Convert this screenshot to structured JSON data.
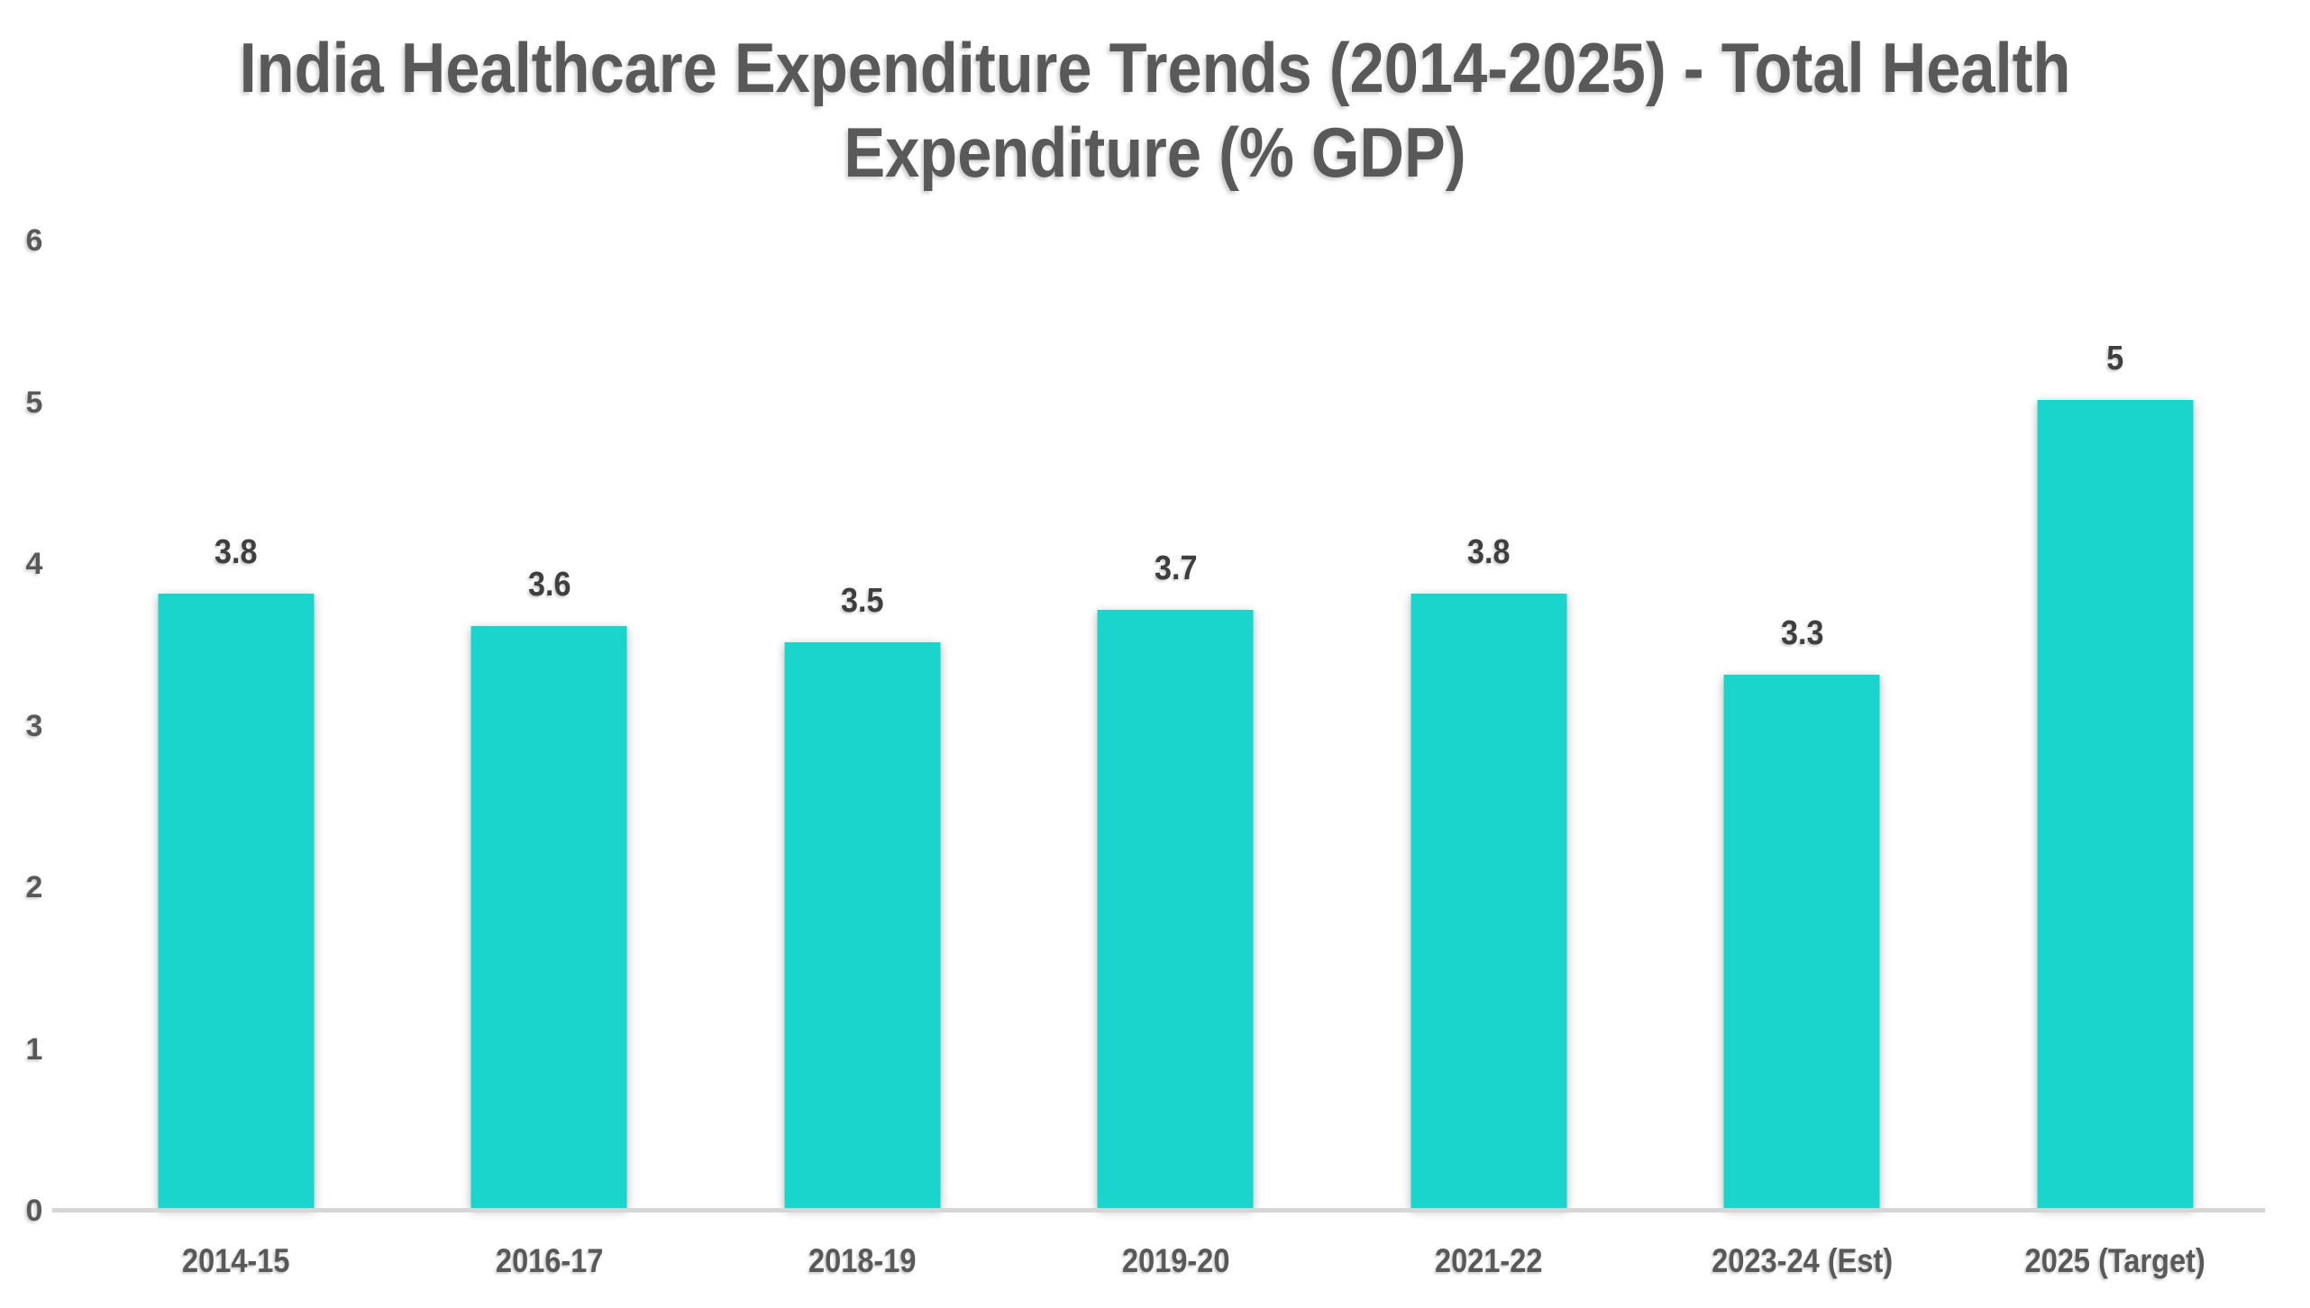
{
  "header": {
    "title_line1": "India Healthcare Expenditure Trends (2014-2025) - Total Health",
    "title_line2": "Expenditure (% GDP)"
  },
  "chart_data": {
    "type": "bar",
    "title": "India Healthcare Expenditure Trends (2014-2025) - Total Health Expenditure (% GDP)",
    "xlabel": "",
    "ylabel": "",
    "categories": [
      "2014-15",
      "2016-17",
      "2018-19",
      "2019-20",
      "2021-22",
      "2023-24 (Est)",
      "2025 (Target)"
    ],
    "values": [
      3.8,
      3.6,
      3.5,
      3.7,
      3.8,
      3.3,
      5
    ],
    "bar_labels": [
      "3.8",
      "3.6",
      "3.5",
      "3.7",
      "3.8",
      "3.3",
      "5"
    ],
    "ylim": [
      0,
      6
    ],
    "yticks": [
      0,
      1,
      2,
      3,
      4,
      5,
      6
    ],
    "grid": false,
    "legend": "none",
    "label_position": "above-bar",
    "colors": {
      "bar": "#1AD5CC",
      "title": "#595959",
      "bar_label": "#3F3F3F",
      "tick_label": "#595959",
      "axis_line": "#D6D6D6",
      "background": "#FFFFFF"
    }
  }
}
